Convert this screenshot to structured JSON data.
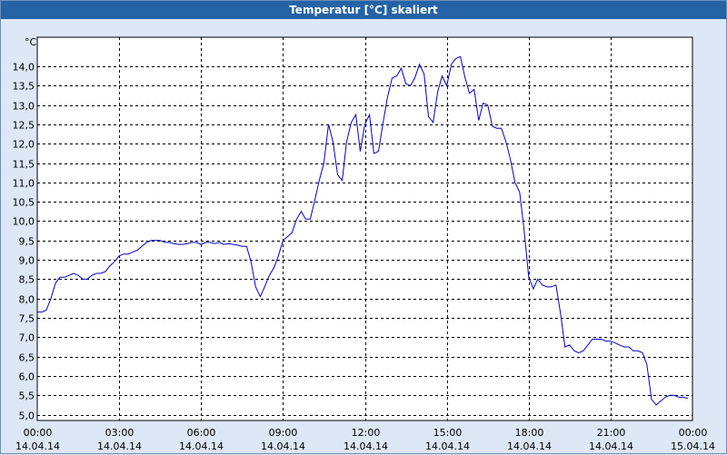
{
  "window": {
    "title": "Temperatur [°C] skaliert"
  },
  "chart_data": {
    "type": "line",
    "title": "Temperatur [°C] skaliert",
    "ylabel": "°C",
    "xlabel": "",
    "ylim": [
      4.85,
      14.75
    ],
    "grid": true,
    "line_color": "#0000cc",
    "y_ticks": [
      "5,0",
      "5,5",
      "6,0",
      "6,5",
      "7,0",
      "7,5",
      "8,0",
      "8,5",
      "9,0",
      "9,5",
      "10,0",
      "10,5",
      "11,0",
      "11,5",
      "12,0",
      "12,5",
      "13,0",
      "13,5",
      "14,0"
    ],
    "y_tick_values": [
      5.0,
      5.5,
      6.0,
      6.5,
      7.0,
      7.5,
      8.0,
      8.5,
      9.0,
      9.5,
      10.0,
      10.5,
      11.0,
      11.5,
      12.0,
      12.5,
      13.0,
      13.5,
      14.0
    ],
    "x_tick_labels": [
      {
        "time": "00:00",
        "date": "14.04.14",
        "hour": 0
      },
      {
        "time": "03:00",
        "date": "14.04.14",
        "hour": 3
      },
      {
        "time": "06:00",
        "date": "14.04.14",
        "hour": 6
      },
      {
        "time": "09:00",
        "date": "14.04.14",
        "hour": 9
      },
      {
        "time": "12:00",
        "date": "14.04.14",
        "hour": 12
      },
      {
        "time": "15:00",
        "date": "14.04.14",
        "hour": 15
      },
      {
        "time": "18:00",
        "date": "14.04.14",
        "hour": 18
      },
      {
        "time": "21:00",
        "date": "14.04.14",
        "hour": 21
      },
      {
        "time": "00:00",
        "date": "15.04.14",
        "hour": 24
      }
    ],
    "x_range_hours": [
      0,
      24
    ],
    "series": [
      {
        "values": [
          [
            0.0,
            7.65
          ],
          [
            0.17,
            7.65
          ],
          [
            0.33,
            7.7
          ],
          [
            0.5,
            8.0
          ],
          [
            0.67,
            8.4
          ],
          [
            0.83,
            8.55
          ],
          [
            1.0,
            8.55
          ],
          [
            1.17,
            8.6
          ],
          [
            1.33,
            8.65
          ],
          [
            1.5,
            8.6
          ],
          [
            1.67,
            8.5
          ],
          [
            1.83,
            8.5
          ],
          [
            2.0,
            8.6
          ],
          [
            2.17,
            8.65
          ],
          [
            2.33,
            8.65
          ],
          [
            2.5,
            8.7
          ],
          [
            2.67,
            8.85
          ],
          [
            2.83,
            8.95
          ],
          [
            3.0,
            9.1
          ],
          [
            3.17,
            9.15
          ],
          [
            3.33,
            9.15
          ],
          [
            3.5,
            9.2
          ],
          [
            3.67,
            9.25
          ],
          [
            3.83,
            9.35
          ],
          [
            4.0,
            9.45
          ],
          [
            4.17,
            9.5
          ],
          [
            4.33,
            9.5
          ],
          [
            4.5,
            9.5
          ],
          [
            4.67,
            9.45
          ],
          [
            4.83,
            9.45
          ],
          [
            5.0,
            9.42
          ],
          [
            5.17,
            9.4
          ],
          [
            5.33,
            9.4
          ],
          [
            5.5,
            9.42
          ],
          [
            5.67,
            9.45
          ],
          [
            5.83,
            9.45
          ],
          [
            6.0,
            9.4
          ],
          [
            6.17,
            9.45
          ],
          [
            6.33,
            9.45
          ],
          [
            6.5,
            9.42
          ],
          [
            6.67,
            9.45
          ],
          [
            6.83,
            9.4
          ],
          [
            7.0,
            9.42
          ],
          [
            7.17,
            9.4
          ],
          [
            7.33,
            9.38
          ],
          [
            7.5,
            9.35
          ],
          [
            7.67,
            9.35
          ],
          [
            7.83,
            8.95
          ],
          [
            8.0,
            8.3
          ],
          [
            8.17,
            8.05
          ],
          [
            8.33,
            8.3
          ],
          [
            8.5,
            8.6
          ],
          [
            8.67,
            8.8
          ],
          [
            8.83,
            9.1
          ],
          [
            9.0,
            9.5
          ],
          [
            9.17,
            9.6
          ],
          [
            9.33,
            9.7
          ],
          [
            9.5,
            10.05
          ],
          [
            9.67,
            10.25
          ],
          [
            9.83,
            10.05
          ],
          [
            10.0,
            10.05
          ],
          [
            10.17,
            10.55
          ],
          [
            10.33,
            11.05
          ],
          [
            10.5,
            11.5
          ],
          [
            10.67,
            12.5
          ],
          [
            10.83,
            12.05
          ],
          [
            11.0,
            11.2
          ],
          [
            11.17,
            11.05
          ],
          [
            11.33,
            12.05
          ],
          [
            11.5,
            12.55
          ],
          [
            11.67,
            12.75
          ],
          [
            11.83,
            11.8
          ],
          [
            12.0,
            12.5
          ],
          [
            12.17,
            12.75
          ],
          [
            12.33,
            11.75
          ],
          [
            12.5,
            11.8
          ],
          [
            12.67,
            12.55
          ],
          [
            12.83,
            13.2
          ],
          [
            13.0,
            13.7
          ],
          [
            13.17,
            13.75
          ],
          [
            13.33,
            13.95
          ],
          [
            13.5,
            13.55
          ],
          [
            13.67,
            13.5
          ],
          [
            13.83,
            13.7
          ],
          [
            14.0,
            14.05
          ],
          [
            14.17,
            13.8
          ],
          [
            14.33,
            12.7
          ],
          [
            14.5,
            12.55
          ],
          [
            14.67,
            13.35
          ],
          [
            14.83,
            13.75
          ],
          [
            15.0,
            13.5
          ],
          [
            15.17,
            14.05
          ],
          [
            15.33,
            14.2
          ],
          [
            15.5,
            14.25
          ],
          [
            15.67,
            13.7
          ],
          [
            15.83,
            13.3
          ],
          [
            16.0,
            13.4
          ],
          [
            16.17,
            12.6
          ],
          [
            16.33,
            13.05
          ],
          [
            16.5,
            13.0
          ],
          [
            16.67,
            12.45
          ],
          [
            16.83,
            12.4
          ],
          [
            17.0,
            12.4
          ],
          [
            17.17,
            12.05
          ],
          [
            17.33,
            11.6
          ],
          [
            17.5,
            11.0
          ],
          [
            17.67,
            10.75
          ],
          [
            17.83,
            9.8
          ],
          [
            18.0,
            8.55
          ],
          [
            18.17,
            8.25
          ],
          [
            18.33,
            8.5
          ],
          [
            18.5,
            8.35
          ],
          [
            18.67,
            8.3
          ],
          [
            18.83,
            8.3
          ],
          [
            19.0,
            8.35
          ],
          [
            19.17,
            7.6
          ],
          [
            19.33,
            6.75
          ],
          [
            19.5,
            6.8
          ],
          [
            19.67,
            6.65
          ],
          [
            19.83,
            6.6
          ],
          [
            20.0,
            6.65
          ],
          [
            20.17,
            6.8
          ],
          [
            20.33,
            6.95
          ],
          [
            20.5,
            6.95
          ],
          [
            20.67,
            6.95
          ],
          [
            20.83,
            6.9
          ],
          [
            21.0,
            6.9
          ],
          [
            21.17,
            6.85
          ],
          [
            21.33,
            6.8
          ],
          [
            21.5,
            6.75
          ],
          [
            21.67,
            6.75
          ],
          [
            21.83,
            6.65
          ],
          [
            22.0,
            6.65
          ],
          [
            22.17,
            6.6
          ],
          [
            22.33,
            6.3
          ],
          [
            22.5,
            5.4
          ],
          [
            22.67,
            5.25
          ],
          [
            22.83,
            5.35
          ],
          [
            23.0,
            5.45
          ],
          [
            23.17,
            5.5
          ],
          [
            23.33,
            5.5
          ],
          [
            23.5,
            5.45
          ],
          [
            23.67,
            5.45
          ],
          [
            23.83,
            5.42
          ]
        ]
      }
    ]
  }
}
